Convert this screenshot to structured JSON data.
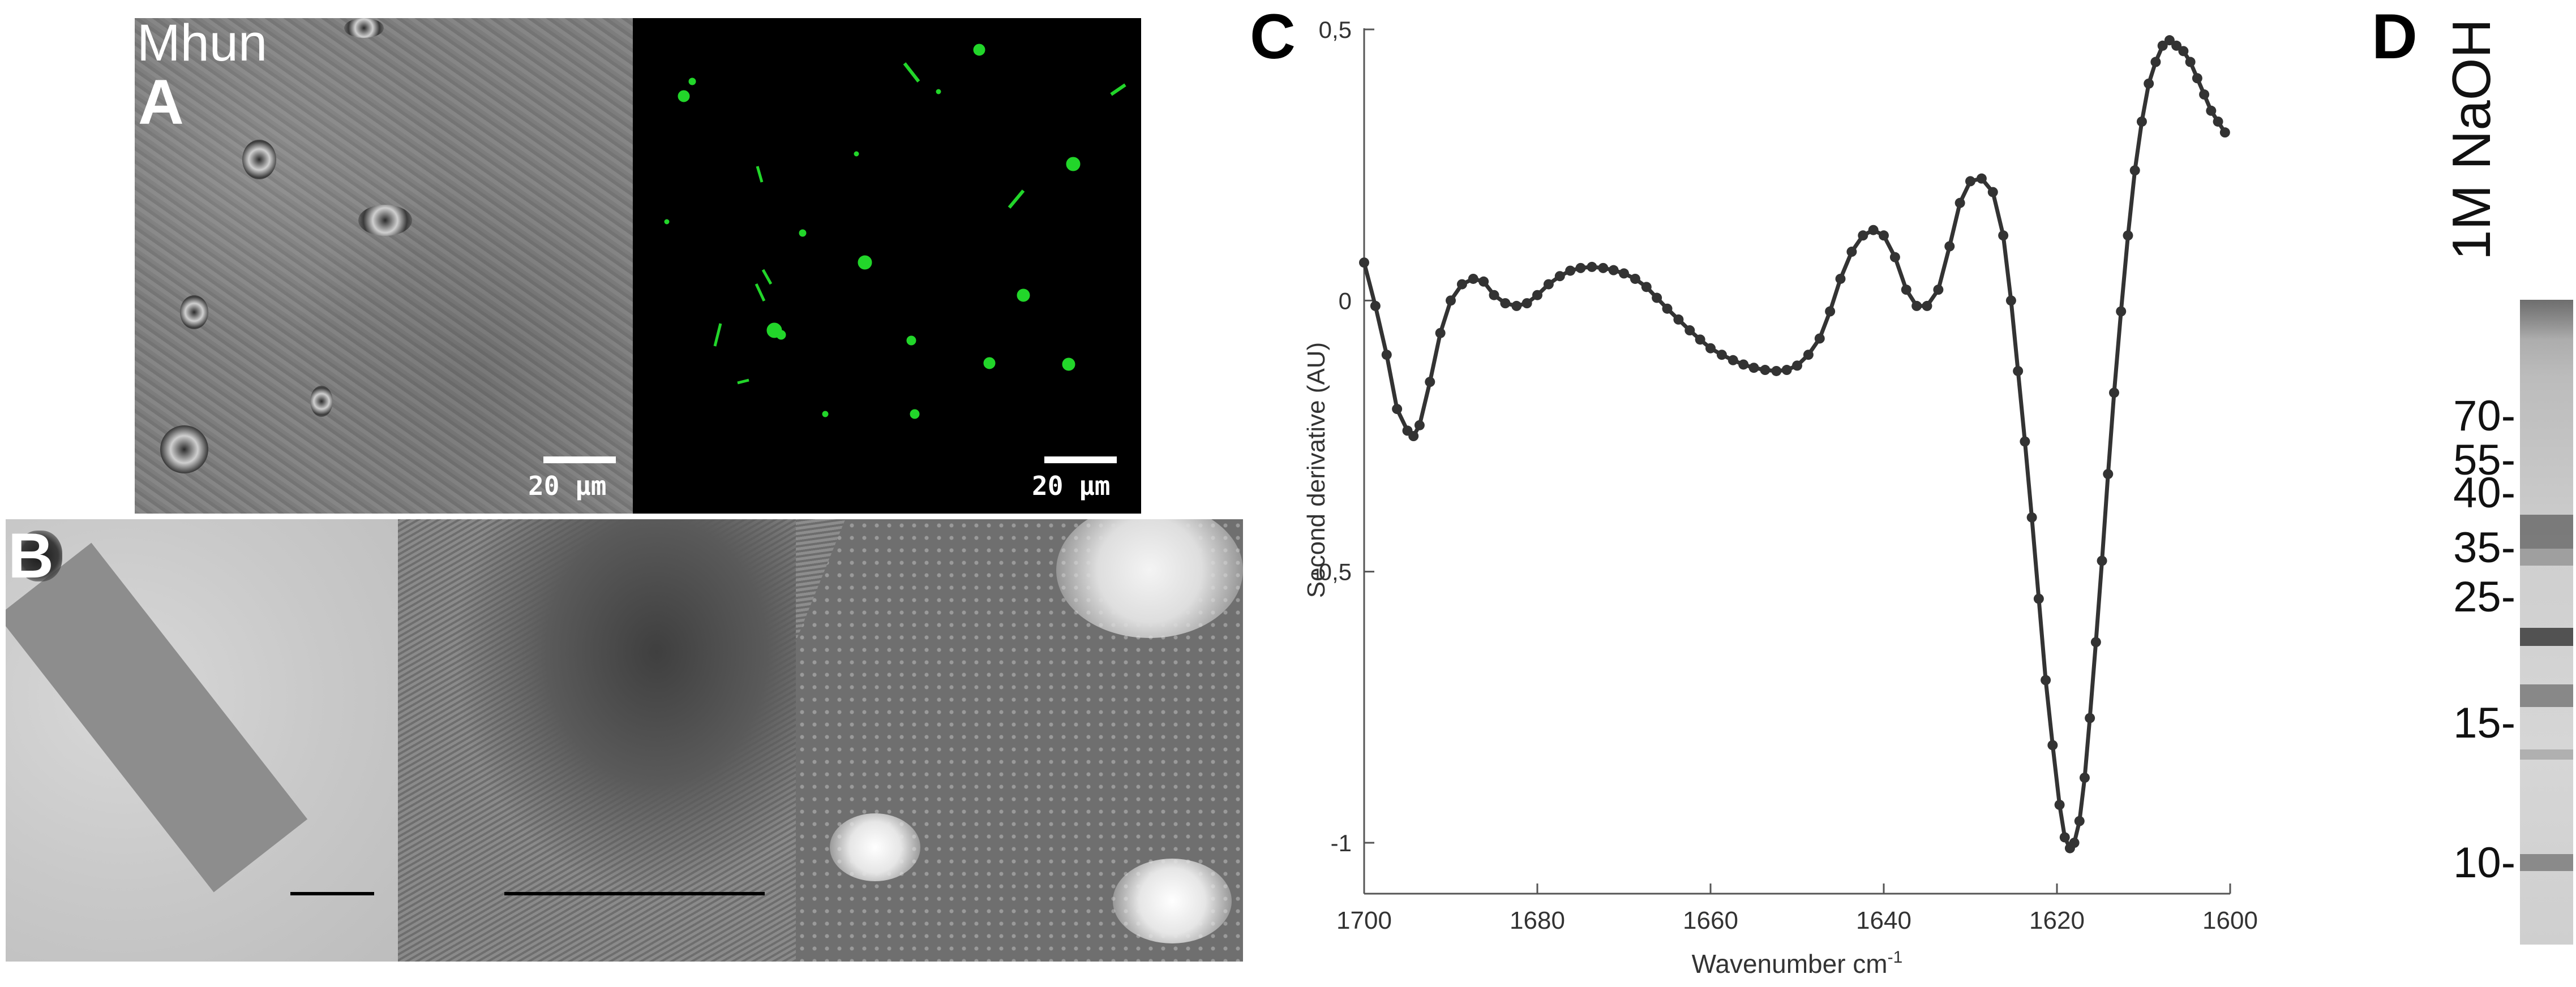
{
  "figure": {
    "panel_a": {
      "strain_label": "Mhun",
      "letter": "A",
      "scale_bar_left": "20 µm",
      "scale_bar_right": "20 µm"
    },
    "panel_b": {
      "letter": "B"
    },
    "panel_c": {
      "letter": "C"
    },
    "panel_d": {
      "letter": "D",
      "lane_label": "1M NaOH",
      "mw_markers": [
        "70-",
        "55-",
        "40-",
        "35-",
        "25-",
        "15-",
        "10-"
      ]
    },
    "colors": {
      "fluorescence": "#22d62a",
      "curve": "#333333",
      "scale_bar": "#000000"
    }
  },
  "chart_data": {
    "type": "line",
    "title": "",
    "xlabel": "Wavenumber cm",
    "xlabel_superscript": "-1",
    "ylabel": "Second derivative (AU)",
    "xlim": [
      1700,
      1600
    ],
    "ylim": [
      -1.1,
      0.5
    ],
    "x_reversed": true,
    "xticks": [
      1700,
      1680,
      1660,
      1640,
      1620,
      1600
    ],
    "xtick_labels": [
      "1700",
      "1680",
      "1660",
      "1640",
      "1620",
      "1600"
    ],
    "yticks": [
      0.5,
      0,
      -0.5,
      -1
    ],
    "ytick_labels": [
      "0,5",
      "0",
      "-0,5",
      "-1"
    ],
    "grid": false,
    "series": [
      {
        "marker": "circle",
        "x": [
          1700,
          1698.7,
          1697.4,
          1696.2,
          1695,
          1694.3,
          1693.6,
          1692.4,
          1691.2,
          1690,
          1688.7,
          1687.4,
          1686.2,
          1685,
          1683.7,
          1682.4,
          1681.2,
          1680,
          1678.7,
          1677.4,
          1676.2,
          1675,
          1673.7,
          1672.4,
          1671.2,
          1670,
          1668.7,
          1667.4,
          1666.2,
          1665,
          1663.7,
          1662.4,
          1661.2,
          1660,
          1658.7,
          1657.4,
          1656.2,
          1655,
          1653.7,
          1652.4,
          1651.2,
          1650,
          1648.7,
          1647.4,
          1646.2,
          1645,
          1643.7,
          1642.4,
          1641.2,
          1640,
          1638.7,
          1637.4,
          1636.2,
          1635,
          1633.7,
          1632.4,
          1631.2,
          1630,
          1628.7,
          1627.4,
          1626.2,
          1625.3,
          1624.5,
          1623.7,
          1622.9,
          1622.1,
          1621.3,
          1620.5,
          1619.7,
          1619.1,
          1618.5,
          1618,
          1617.4,
          1616.8,
          1616.2,
          1615.5,
          1614.8,
          1614.1,
          1613.4,
          1612.6,
          1611.8,
          1611,
          1610.2,
          1609.4,
          1608.6,
          1607.8,
          1607,
          1606.2,
          1605.4,
          1604.6,
          1603.8,
          1603,
          1602.2,
          1601.4,
          1600.6
        ],
        "y": [
          0.07,
          -0.01,
          -0.1,
          -0.2,
          -0.24,
          -0.25,
          -0.23,
          -0.15,
          -0.06,
          0.0,
          0.03,
          0.04,
          0.035,
          0.01,
          -0.005,
          -0.01,
          -0.005,
          0.01,
          0.03,
          0.045,
          0.055,
          0.06,
          0.062,
          0.06,
          0.056,
          0.05,
          0.04,
          0.025,
          0.005,
          -0.015,
          -0.035,
          -0.055,
          -0.072,
          -0.088,
          -0.1,
          -0.11,
          -0.118,
          -0.124,
          -0.128,
          -0.13,
          -0.128,
          -0.12,
          -0.1,
          -0.07,
          -0.02,
          0.04,
          0.09,
          0.12,
          0.13,
          0.12,
          0.08,
          0.02,
          -0.01,
          -0.01,
          0.02,
          0.1,
          0.18,
          0.22,
          0.225,
          0.2,
          0.12,
          0.0,
          -0.13,
          -0.26,
          -0.4,
          -0.55,
          -0.7,
          -0.82,
          -0.93,
          -0.99,
          -1.01,
          -1.0,
          -0.96,
          -0.88,
          -0.77,
          -0.63,
          -0.48,
          -0.32,
          -0.17,
          -0.02,
          0.12,
          0.24,
          0.33,
          0.4,
          0.44,
          0.47,
          0.48,
          0.47,
          0.46,
          0.44,
          0.41,
          0.38,
          0.35,
          0.33,
          0.31
        ]
      }
    ]
  }
}
